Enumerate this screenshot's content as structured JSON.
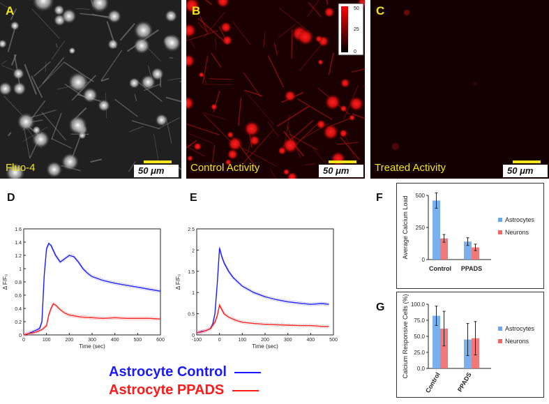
{
  "panels": {
    "A": {
      "letter": "A",
      "caption": "Fluo-4",
      "scale": "50 μm"
    },
    "B": {
      "letter": "B",
      "caption": "Control Activity",
      "scale": "50 μm",
      "colorbar_ticks": [
        "50",
        "25",
        "0"
      ]
    },
    "C": {
      "letter": "C",
      "caption": "Treated Activity",
      "scale": "50 μm"
    }
  },
  "colors": {
    "control": "#1a1aff",
    "ppads": "#ff1a1a",
    "astro_bar": "#6aa9ec",
    "neuron_bar": "#ee6a6a",
    "label_yellow": "#f2e51a"
  },
  "chart_data": [
    {
      "id": "D",
      "type": "line",
      "letter": "D",
      "xlabel": "Time (sec)",
      "ylabel": "Δ F/F₀",
      "xlim": [
        0,
        600
      ],
      "ylim": [
        0,
        1.6
      ],
      "xticks": [
        0,
        100,
        200,
        300,
        400,
        500,
        600
      ],
      "yticks": [
        0,
        0.2,
        0.4,
        0.6,
        0.8,
        1,
        1.2,
        1.4,
        1.6
      ],
      "ytick_labels": [
        "0",
        "0.2",
        "0.4",
        "0.6",
        "0.8",
        "1",
        "1.2",
        "1.4",
        "1.6"
      ],
      "series": [
        {
          "name": "Astrocyte Control",
          "color": "#1a1aff",
          "x": [
            0,
            20,
            40,
            60,
            70,
            80,
            90,
            100,
            110,
            120,
            140,
            160,
            180,
            200,
            220,
            240,
            260,
            280,
            300,
            350,
            400,
            450,
            500,
            550,
            600
          ],
          "y": [
            0,
            0.02,
            0.05,
            0.08,
            0.1,
            0.2,
            0.9,
            1.3,
            1.38,
            1.35,
            1.2,
            1.1,
            1.15,
            1.2,
            1.18,
            1.1,
            1.0,
            0.93,
            0.88,
            0.82,
            0.78,
            0.75,
            0.72,
            0.69,
            0.66
          ]
        },
        {
          "name": "Astrocyte PPADS",
          "color": "#ff1a1a",
          "x": [
            0,
            20,
            40,
            60,
            80,
            100,
            110,
            120,
            130,
            140,
            160,
            180,
            200,
            250,
            300,
            350,
            400,
            450,
            500,
            550,
            600
          ],
          "y": [
            0,
            0.02,
            0.03,
            0.05,
            0.08,
            0.14,
            0.3,
            0.4,
            0.47,
            0.45,
            0.38,
            0.33,
            0.3,
            0.27,
            0.26,
            0.25,
            0.26,
            0.25,
            0.25,
            0.25,
            0.24
          ]
        }
      ]
    },
    {
      "id": "E",
      "type": "line",
      "letter": "E",
      "xlabel": "Time (sec)",
      "ylabel": "Δ F/F₀",
      "xlim": [
        -100,
        500
      ],
      "ylim": [
        0,
        2.5
      ],
      "xticks": [
        -100,
        0,
        100,
        200,
        300,
        400,
        500
      ],
      "yticks": [
        0,
        0.5,
        1,
        1.5,
        2,
        2.5
      ],
      "ytick_labels": [
        "0",
        "0.5",
        "1",
        "1.5",
        "2",
        "2.5"
      ],
      "series": [
        {
          "name": "Astrocyte Control",
          "color": "#1a1aff",
          "x": [
            -100,
            -80,
            -60,
            -40,
            -30,
            -20,
            -10,
            0,
            10,
            20,
            40,
            60,
            80,
            100,
            150,
            200,
            250,
            300,
            350,
            400,
            450,
            480
          ],
          "y": [
            0.05,
            0.08,
            0.1,
            0.15,
            0.25,
            0.5,
            1.2,
            2.05,
            1.85,
            1.7,
            1.5,
            1.35,
            1.25,
            1.15,
            1.0,
            0.9,
            0.83,
            0.78,
            0.75,
            0.72,
            0.74,
            0.72
          ]
        },
        {
          "name": "Astrocyte PPADS",
          "color": "#ff1a1a",
          "x": [
            -100,
            -80,
            -60,
            -40,
            -20,
            -10,
            0,
            10,
            20,
            40,
            60,
            80,
            100,
            150,
            200,
            250,
            300,
            350,
            400,
            450,
            480
          ],
          "y": [
            0.05,
            0.07,
            0.1,
            0.15,
            0.3,
            0.45,
            0.7,
            0.6,
            0.5,
            0.42,
            0.37,
            0.33,
            0.3,
            0.27,
            0.25,
            0.24,
            0.23,
            0.22,
            0.22,
            0.2,
            0.2
          ]
        }
      ]
    },
    {
      "id": "F",
      "type": "bar",
      "letter": "F",
      "ylabel": "Average Calcium Load",
      "categories": [
        "Control",
        "PPADS"
      ],
      "ylim": [
        0,
        500
      ],
      "yticks": [
        0,
        250,
        500
      ],
      "ytick_labels": [
        "0",
        "250",
        "500"
      ],
      "series": [
        {
          "name": "Astrocytes",
          "color": "#6aa9ec",
          "values": [
            460,
            140
          ],
          "err": [
            60,
            30
          ]
        },
        {
          "name": "Neurons",
          "color": "#ee6a6a",
          "values": [
            165,
            95
          ],
          "err": [
            30,
            25
          ]
        }
      ]
    },
    {
      "id": "G",
      "type": "bar",
      "letter": "G",
      "ylabel": "Calcium Responsive Cells (%)",
      "categories": [
        "Control",
        "PPADS"
      ],
      "ylim": [
        0,
        100
      ],
      "yticks": [
        0,
        25,
        50,
        75,
        100
      ],
      "ytick_labels": [
        "0.0",
        "25.0",
        "50.0",
        "75.0",
        "100.0"
      ],
      "series": [
        {
          "name": "Astrocytes",
          "color": "#6aa9ec",
          "values": [
            82,
            45
          ],
          "err": [
            15,
            25
          ]
        },
        {
          "name": "Neurons",
          "color": "#ee6a6a",
          "values": [
            62,
            47
          ],
          "err": [
            27,
            26
          ]
        }
      ]
    }
  ],
  "legend_lines": [
    {
      "label": "Astrocyte Control",
      "color": "#1a1aff"
    },
    {
      "label": "Astrocyte PPADS",
      "color": "#ff1a1a"
    }
  ]
}
